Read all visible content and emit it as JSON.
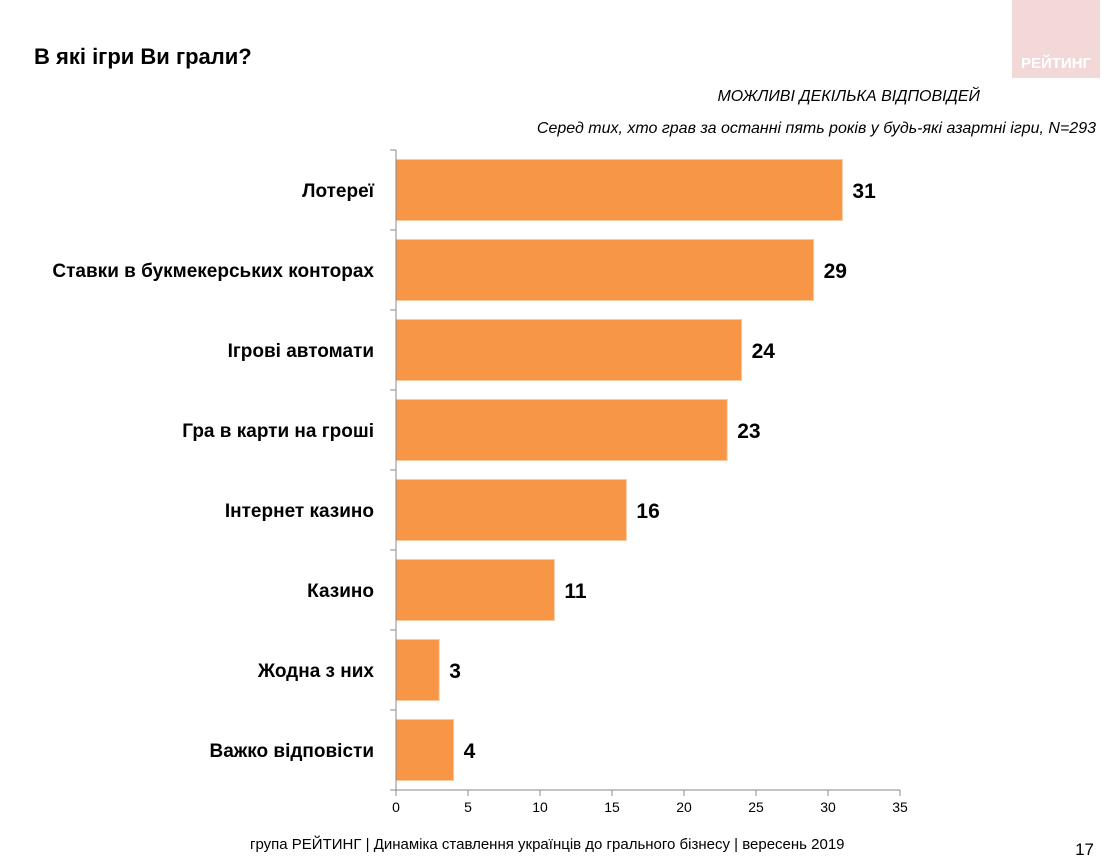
{
  "header": {
    "title": "В які ігри Ви грали?",
    "logo_text": "РЕЙТИНГ"
  },
  "subtitle": {
    "line1": "МОЖЛИВІ ДЕКІЛЬКА ВІДПОВІДЕЙ",
    "line2": "Серед тих, хто грав за останні пять років у будь-які азартні ігри, N=293"
  },
  "chart_data": {
    "type": "bar",
    "orientation": "horizontal",
    "categories": [
      "Лотереї",
      "Ставки в букмекерських конторах",
      "Ігрові автомати",
      "Гра в карти на гроші",
      "Інтернет казино",
      "Казино",
      "Жодна з них",
      "Важко відповісти"
    ],
    "values": [
      31,
      29,
      24,
      23,
      16,
      11,
      3,
      4
    ],
    "xlim": [
      0,
      35
    ],
    "xticks": [
      0,
      5,
      10,
      15,
      20,
      25,
      30,
      35
    ],
    "grid": false,
    "bar_color": "#f79646"
  },
  "footer": {
    "text": "група РЕЙТИНГ  |  Динаміка ставлення українців до грального бізнесу  |  вересень 2019",
    "page": "17"
  }
}
